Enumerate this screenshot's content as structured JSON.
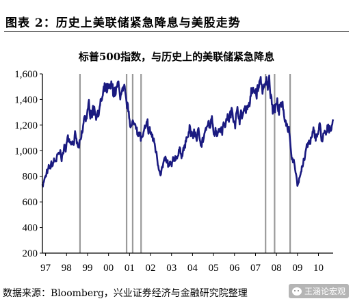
{
  "header": {
    "figure_label": "图表 2：历史上美联储紧急降息与美股走势"
  },
  "chart_data": {
    "type": "line",
    "title": "标普500指数，与历史上的美联储紧急降息",
    "xlabel": "",
    "ylabel": "",
    "ylim": [
      200,
      1600
    ],
    "xlim": [
      1997.0,
      2010.85
    ],
    "y_ticks": [
      200,
      400,
      600,
      800,
      1000,
      1200,
      1400,
      1600
    ],
    "y_tick_labels": [
      "200",
      "400",
      "600",
      "800",
      "1,000",
      "1,200",
      "1,400",
      "1,600"
    ],
    "x_ticks": [
      1997.15,
      1998.15,
      1999.15,
      2000.15,
      2001.15,
      2002.15,
      2003.15,
      2004.15,
      2005.15,
      2006.15,
      2007.15,
      2008.15,
      2009.15,
      2010.15
    ],
    "x_tick_labels": [
      "97",
      "98",
      "99",
      "00",
      "01",
      "02",
      "03",
      "04",
      "05",
      "06",
      "07",
      "08",
      "09",
      "10"
    ],
    "grid": false,
    "line_color": "#1a1a80",
    "event_line_color": "#9a9a9a",
    "emergency_cuts": [
      1998.79,
      2001.01,
      2001.3,
      2001.7,
      2007.63,
      2008.06,
      2008.8
    ],
    "series": [
      {
        "x": [
          1997.0,
          1997.2,
          1997.4,
          1997.6,
          1997.8,
          1998.0,
          1998.2,
          1998.4,
          1998.55,
          1998.7,
          1998.85,
          1999.0,
          1999.2,
          1999.4,
          1999.6,
          1999.8,
          2000.0,
          2000.2,
          2000.4,
          2000.6,
          2000.75,
          2000.9,
          2001.0,
          2001.2,
          2001.35,
          2001.5,
          2001.7,
          2001.85,
          2002.0,
          2002.2,
          2002.4,
          2002.55,
          2002.7,
          2002.85,
          2003.0,
          2003.2,
          2003.4,
          2003.6,
          2003.8,
          2004.0,
          2004.3,
          2004.6,
          2005.0,
          2005.3,
          2005.6,
          2006.0,
          2006.3,
          2006.5,
          2006.8,
          2007.0,
          2007.2,
          2007.4,
          2007.6,
          2007.8,
          2008.0,
          2008.2,
          2008.45,
          2008.6,
          2008.75,
          2008.85,
          2008.95,
          2009.05,
          2009.15,
          2009.3,
          2009.45,
          2009.6,
          2009.8,
          2010.0,
          2010.2,
          2010.35,
          2010.5,
          2010.65,
          2010.85
        ],
        "y": [
          750,
          800,
          860,
          920,
          940,
          980,
          1080,
          1120,
          1110,
          1000,
          1050,
          1230,
          1300,
          1340,
          1320,
          1380,
          1440,
          1420,
          1460,
          1470,
          1440,
          1380,
          1310,
          1230,
          1180,
          1220,
          1080,
          1130,
          1140,
          1120,
          1000,
          880,
          880,
          900,
          860,
          860,
          980,
          1000,
          1040,
          1130,
          1120,
          1100,
          1190,
          1180,
          1230,
          1280,
          1300,
          1260,
          1380,
          1440,
          1450,
          1520,
          1450,
          1530,
          1380,
          1360,
          1300,
          1260,
          1150,
          900,
          870,
          850,
          720,
          860,
          930,
          1010,
          1080,
          1110,
          1170,
          1080,
          1100,
          1150,
          1280
        ]
      }
    ]
  },
  "footer": {
    "source": "数据来源：Bloomberg，兴业证券经济与金融研究院整理"
  },
  "watermark": {
    "text": "王涵论宏观"
  }
}
